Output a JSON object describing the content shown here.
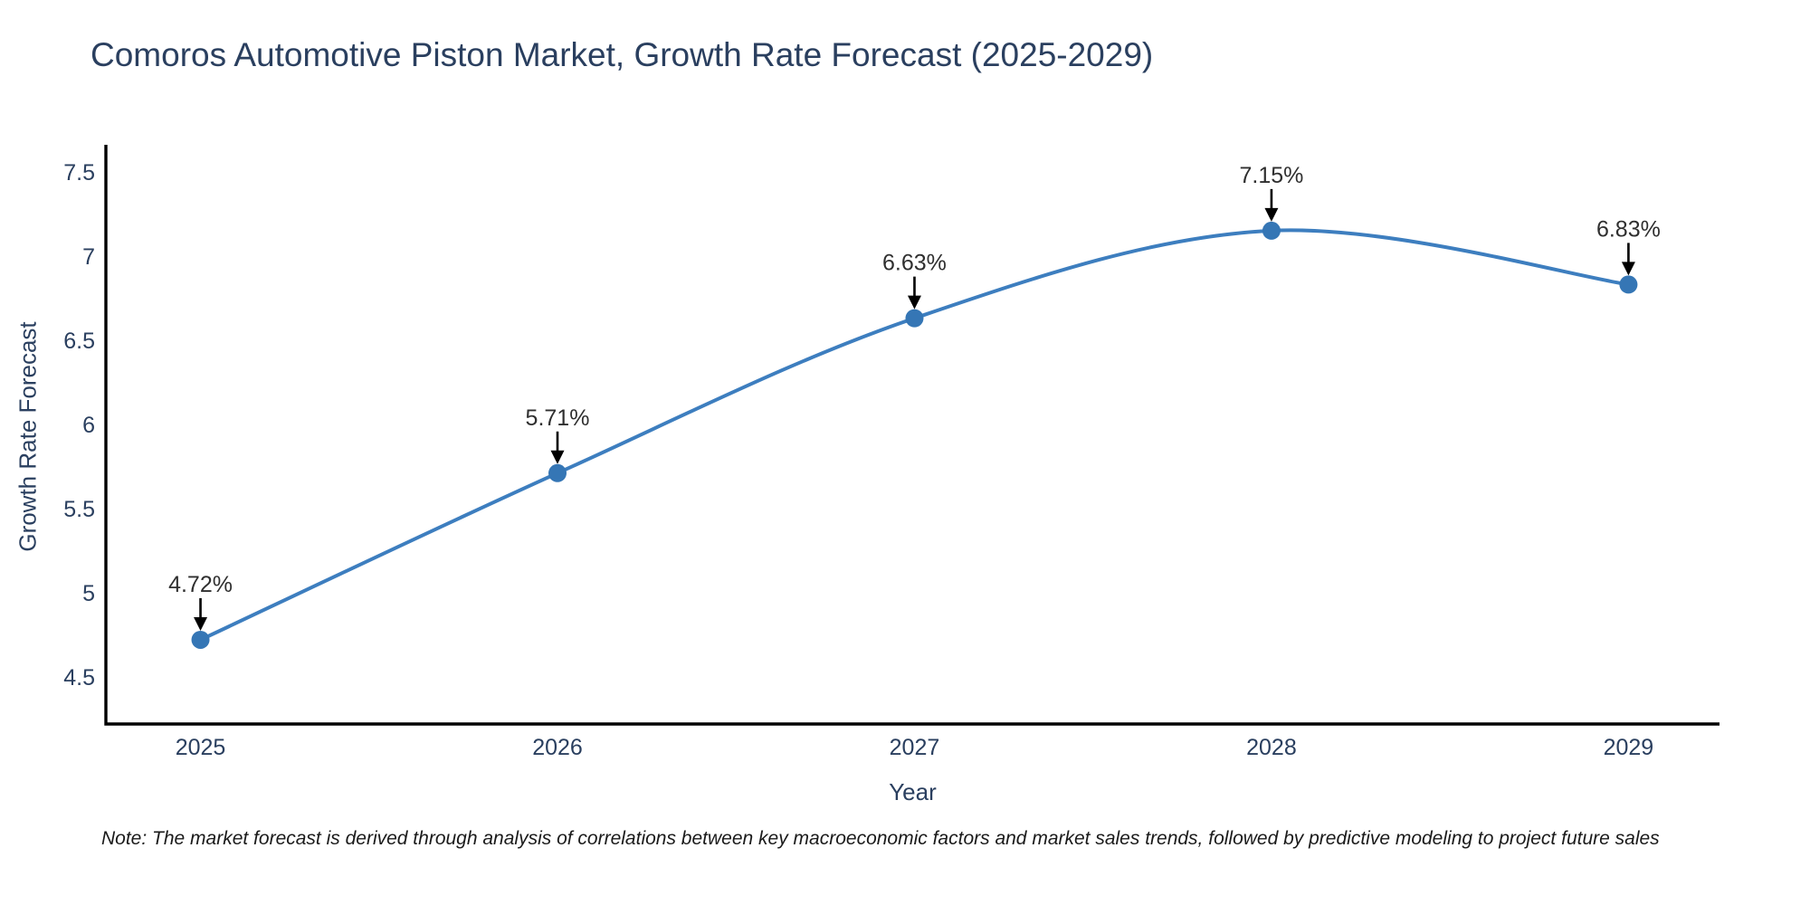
{
  "page": {
    "background_color": "#ffffff"
  },
  "header": {
    "title": "Comoros Automotive Piston Market, Growth Rate Forecast (2025-2029)"
  },
  "footnote": "Note: The market forecast is derived through analysis of correlations between key macroeconomic factors and market sales trends, followed by predictive modeling to project future sales",
  "chart_data": {
    "type": "line",
    "title": "Comoros Automotive Piston Market, Growth Rate Forecast (2025-2029)",
    "xlabel": "Year",
    "ylabel": "Growth Rate Forecast",
    "x": [
      2025,
      2026,
      2027,
      2028,
      2029
    ],
    "y": [
      4.72,
      5.71,
      6.63,
      7.15,
      6.83
    ],
    "point_labels": [
      "4.72%",
      "5.71%",
      "6.63%",
      "7.15%",
      "6.83%"
    ],
    "xticks": [
      "2025",
      "2026",
      "2027",
      "2028",
      "2029"
    ],
    "yticks": [
      "4.5",
      "5",
      "5.5",
      "6",
      "6.5",
      "7",
      "7.5"
    ],
    "xlim": [
      2024.735,
      2029.255
    ],
    "ylim": [
      4.22,
      7.66
    ],
    "grid": false,
    "legend": false,
    "line_shape": "spline",
    "annotations_have_arrows": true,
    "colors": {
      "line": "#3d7ebf",
      "marker": "#3576b5",
      "axis": "#000000",
      "tick_label": "#2a3f5f",
      "annotation_text": "#2f2f2f",
      "annotation_arrow": "#000000",
      "title": "#2a3f5f"
    }
  }
}
